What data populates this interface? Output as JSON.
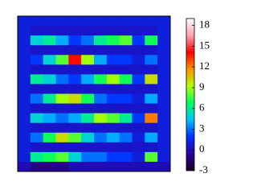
{
  "chart_data": {
    "type": "heatmap",
    "values": [
      [
        1,
        1,
        1,
        1,
        1,
        1,
        1,
        1,
        1,
        1,
        1,
        1
      ],
      [
        1,
        0.5,
        0.5,
        0.5,
        0.5,
        0.5,
        0.5,
        0.5,
        0.5,
        0.5,
        0.5,
        1
      ],
      [
        1,
        5,
        6,
        4,
        2,
        3,
        6,
        7,
        8,
        2,
        7,
        1
      ],
      [
        1,
        0.5,
        0.5,
        0.5,
        0.5,
        0.5,
        0.5,
        0.5,
        0.5,
        0.5,
        0.5,
        1
      ],
      [
        1,
        2,
        5,
        8,
        14,
        9,
        4,
        2,
        2,
        1,
        3,
        1
      ],
      [
        1,
        0.5,
        0.5,
        0.5,
        0.5,
        0.5,
        0.5,
        0.5,
        0.5,
        0.5,
        0.5,
        1
      ],
      [
        1,
        6,
        5,
        3,
        2,
        4,
        7,
        9,
        7,
        2,
        10,
        1
      ],
      [
        1,
        0.5,
        0.5,
        0.5,
        0.5,
        0.5,
        0.5,
        0.5,
        0.5,
        0.5,
        0.5,
        1
      ],
      [
        1,
        3,
        6,
        9,
        10,
        7,
        3,
        2,
        2,
        1,
        4,
        1
      ],
      [
        1,
        0.5,
        0.5,
        0.5,
        0.5,
        0.5,
        0.5,
        0.5,
        0.5,
        0.5,
        0.5,
        1
      ],
      [
        1,
        5,
        4,
        3,
        4,
        6,
        9,
        8,
        6,
        2,
        12,
        1
      ],
      [
        1,
        0.5,
        0.5,
        0.5,
        0.5,
        0.5,
        0.5,
        0.5,
        0.5,
        0.5,
        0.5,
        1
      ],
      [
        1,
        3,
        7,
        10,
        8,
        5,
        3,
        4,
        3,
        1,
        4,
        1
      ],
      [
        1,
        0.5,
        0.5,
        0.5,
        0.5,
        0.5,
        0.5,
        0.5,
        0.5,
        0.5,
        0.5,
        1
      ],
      [
        1,
        6,
        7,
        8,
        5,
        3,
        3,
        2,
        2,
        1,
        8,
        1
      ],
      [
        0,
        -1,
        -1,
        -1,
        0,
        0,
        0,
        0,
        0,
        0,
        0,
        0
      ]
    ],
    "zlim": [
      -3,
      19
    ],
    "zticks": [
      -3,
      0,
      3,
      6,
      9,
      12,
      15,
      18
    ],
    "colormap": [
      "#1a0020",
      "#2a00a0",
      "#0030ff",
      "#00c0ff",
      "#00ff60",
      "#b0ff00",
      "#ff9000",
      "#ff0000",
      "#ffa0b0",
      "#ffffff"
    ]
  }
}
